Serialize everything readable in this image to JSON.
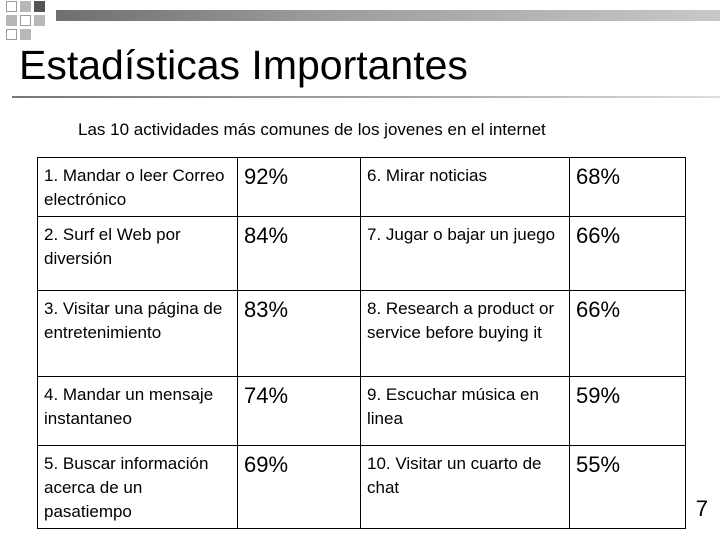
{
  "slide": {
    "title": "Estadísticas Importantes",
    "subtitle": "Las 10 actividades más comunes de los jovenes en el internet",
    "page_number": "7"
  },
  "rows": [
    {
      "left_activity": "1. Mandar o leer Correo electrónico",
      "left_percent": "92%",
      "right_activity": "6. Mirar noticias",
      "right_percent": "68%"
    },
    {
      "left_activity": "2. Surf el Web por diversión",
      "left_percent": "84%",
      "right_activity": "7. Jugar o bajar un juego",
      "right_percent": "66%"
    },
    {
      "left_activity": "3. Visitar una página de  entretenimiento",
      "left_percent": "83%",
      "right_activity": "8. Research a product or service before buying it",
      "right_percent": "66%"
    },
    {
      "left_activity": "4. Mandar un mensaje instantaneo",
      "left_percent": "74%",
      "right_activity": "9. Escuchar música en linea",
      "right_percent": "59%"
    },
    {
      "left_activity": "5. Buscar información acerca de un pasatiempo",
      "left_percent": "69%",
      "right_activity": "10. Visitar un cuarto de chat",
      "right_percent": "55%"
    }
  ]
}
